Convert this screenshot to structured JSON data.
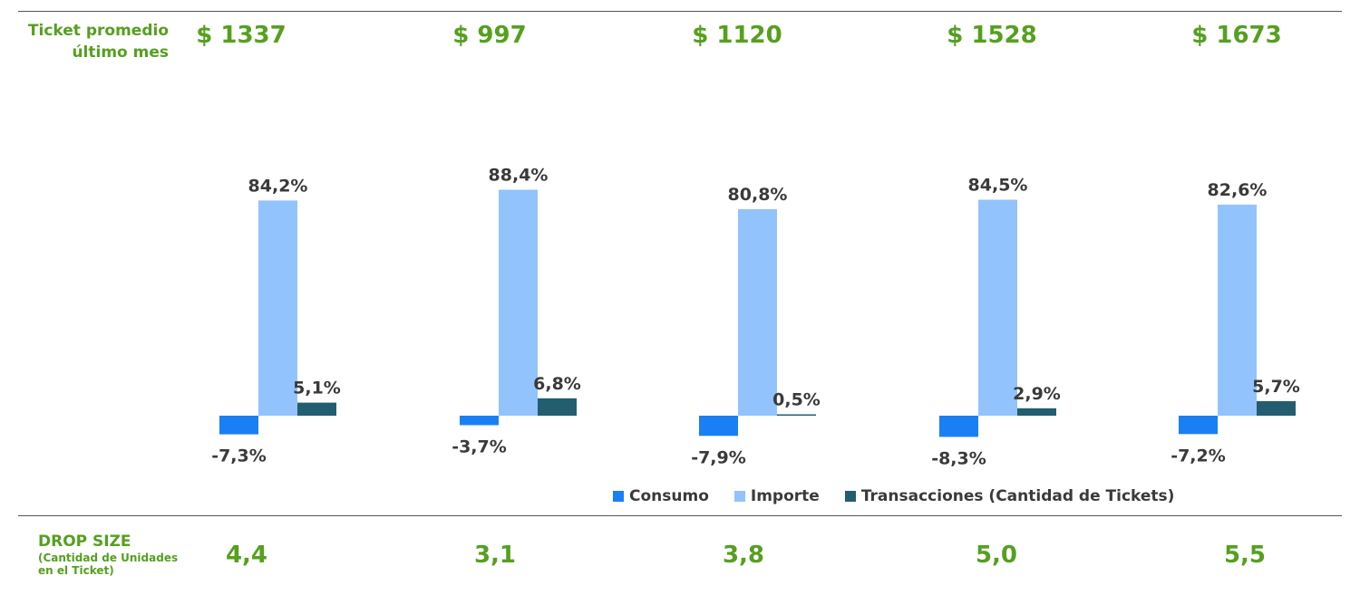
{
  "ticket": {
    "label_line1": "Ticket promedio",
    "label_line2": "último mes",
    "values": [
      "$ 1337",
      "$ 997",
      "$ 1120",
      "$ 1528",
      "$ 1673"
    ]
  },
  "drop_size": {
    "title": "DROP SIZE",
    "subtitle": "(Cantidad de Unidades en el Ticket)",
    "values": [
      "4,4",
      "3,1",
      "3,8",
      "5,0",
      "5,5"
    ]
  },
  "colors": {
    "consumo": "#1a7ff5",
    "importe": "#92c3fd",
    "transacciones": "#235d70",
    "accent": "#55a01f",
    "label": "#3a3a3a"
  },
  "chart_data": {
    "type": "bar",
    "categories": [
      "",
      "",
      "",
      "",
      ""
    ],
    "series": [
      {
        "name": "Consumo",
        "values": [
          -7.3,
          -3.7,
          -7.9,
          -8.3,
          -7.2
        ],
        "labels": [
          "-7,3%",
          "-3,7%",
          "-7,9%",
          "-8,3%",
          "-7,2%"
        ]
      },
      {
        "name": "Importe",
        "values": [
          84.2,
          88.4,
          80.8,
          84.5,
          82.6
        ],
        "labels": [
          "84,2%",
          "88,4%",
          "80,8%",
          "84,5%",
          "82,6%"
        ]
      },
      {
        "name": "Transacciones (Cantidad de Tickets)",
        "values": [
          5.1,
          6.8,
          0.5,
          2.9,
          5.7
        ],
        "labels": [
          "5,1%",
          "6,8%",
          "0,5%",
          "2,9%",
          "5,7%"
        ]
      }
    ],
    "title": "",
    "xlabel": "",
    "ylabel": "",
    "ylim": [
      -10,
      90
    ],
    "grid": false,
    "legend": "bottom"
  }
}
